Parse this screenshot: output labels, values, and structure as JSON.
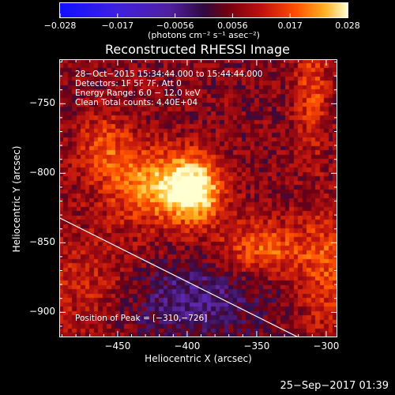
{
  "chart_data": {
    "type": "heatmap",
    "title": "Reconstructed RHESSI Image",
    "colorbar": {
      "ticks": [
        "−0.028",
        "−0.017",
        "−0.0056",
        "0.0056",
        "0.017",
        "0.028"
      ],
      "unit_label": "(photons cm⁻² s⁻¹ asec⁻²)",
      "range": [
        -0.028,
        0.028
      ]
    },
    "xlabel": "Heliocentric X (arcsec)",
    "ylabel": "Heliocentric Y (arcsec)",
    "xlim": [
      -492,
      -292
    ],
    "ylim": [
      -918,
      -718
    ],
    "x_ticks": [
      {
        "value": -450,
        "label": "−450"
      },
      {
        "value": -400,
        "label": "−400"
      },
      {
        "value": -350,
        "label": "−350"
      },
      {
        "value": -300,
        "label": "−300"
      }
    ],
    "y_ticks": [
      {
        "value": -750,
        "label": "−750"
      },
      {
        "value": -800,
        "label": "−800"
      },
      {
        "value": -850,
        "label": "−850"
      },
      {
        "value": -900,
        "label": "−900"
      }
    ],
    "sources": [
      {
        "x": -396,
        "y": -812,
        "sx": 14,
        "sy": 16,
        "amp": 1.0
      },
      {
        "x": -430,
        "y": -808,
        "sx": 20,
        "sy": 18,
        "amp": 0.55
      },
      {
        "x": -460,
        "y": -780,
        "sx": 14,
        "sy": 16,
        "amp": 0.35
      },
      {
        "x": -345,
        "y": -855,
        "sx": 22,
        "sy": 14,
        "amp": 0.45
      },
      {
        "x": -300,
        "y": -870,
        "sx": 14,
        "sy": 30,
        "amp": 0.35
      },
      {
        "x": -310,
        "y": -740,
        "sx": 8,
        "sy": 30,
        "amp": 0.35
      },
      {
        "x": -470,
        "y": -880,
        "sx": 30,
        "sy": 25,
        "amp": 0.25
      }
    ],
    "negative_region": {
      "x": -400,
      "y": -890,
      "sx": 40,
      "sy": 20,
      "amp": -0.35
    },
    "limb_line": {
      "x": [
        -492,
        -320
      ],
      "y": [
        -832,
        -918
      ]
    },
    "annotations": [
      "28−Oct−2015 15:34:44.000 to 15:44:44.000",
      "Detectors: 1F 5F 7F, Att 0",
      "Energy Range: 6.0 − 12.0 keV",
      "Clean    Total counts: 4.40E+04"
    ],
    "peak_label": "Position of Peak = [−310,−726]",
    "colors": {
      "background": "#000000",
      "text": "#ffffff"
    }
  },
  "footer": {
    "timestamp": "25−Sep−2017 01:39"
  }
}
